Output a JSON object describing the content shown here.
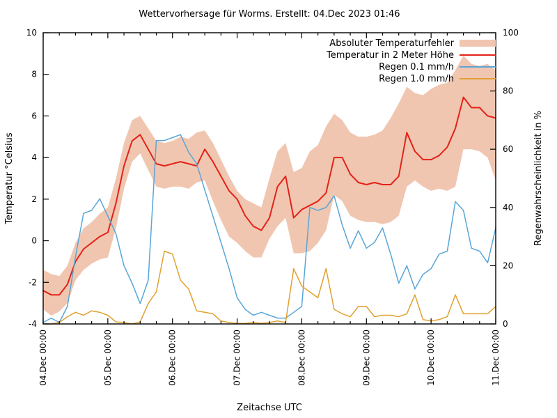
{
  "title": "Wettervorhersage für Worms. Erstellt: 04.Dec 2023 01:46",
  "chart_data": {
    "type": "line",
    "title": "Wettervorhersage für Worms. Erstellt: 04.Dec 2023 01:46",
    "xlabel": "Zeitachse UTC",
    "ylabel_left": "Temperatur °Celsius",
    "ylabel_right": "Regenwahrscheinlichkeit in %",
    "grid": false,
    "legend_position": "top-right-inside",
    "axes": {
      "x": {
        "min": 4,
        "max": 11,
        "unit": "day of December 2023, UTC",
        "minor_tick_hours": 6
      },
      "left": {
        "min": -4,
        "max": 10,
        "ticks": [
          -4,
          -2,
          0,
          2,
          4,
          6,
          8,
          10
        ]
      },
      "right": {
        "min": 0,
        "max": 100,
        "ticks": [
          0,
          20,
          40,
          60,
          80,
          100
        ]
      }
    },
    "x_tick_labels": [
      "04.Dec 00:00",
      "05.Dec 00:00",
      "06.Dec 00:00",
      "07.Dec 00:00",
      "08.Dec 00:00",
      "09.Dec 00:00",
      "10.Dec 00:00",
      "11.Dec 00:00"
    ],
    "x_day": [
      4,
      4.125,
      4.25,
      4.375,
      4.5,
      4.625,
      4.75,
      4.875,
      5,
      5.125,
      5.25,
      5.375,
      5.5,
      5.625,
      5.75,
      5.875,
      6,
      6.125,
      6.25,
      6.375,
      6.5,
      6.625,
      6.75,
      6.875,
      7,
      7.125,
      7.25,
      7.375,
      7.5,
      7.625,
      7.75,
      7.875,
      8,
      8.125,
      8.25,
      8.375,
      8.5,
      8.625,
      8.75,
      8.875,
      9,
      9.125,
      9.25,
      9.375,
      9.5,
      9.625,
      9.75,
      9.875,
      10,
      10.125,
      10.25,
      10.375,
      10.5,
      10.625,
      10.75,
      10.875,
      11
    ],
    "series": [
      {
        "id": "temp_error_band",
        "name": "Absoluter Temperaturfehler",
        "type": "band",
        "axis": "left",
        "color": "#f0c6b1",
        "upper": [
          -1.4,
          -1.6,
          -1.7,
          -1.2,
          -0.1,
          0.6,
          0.9,
          1.3,
          1.6,
          3.0,
          4.7,
          5.8,
          6.0,
          5.4,
          4.8,
          4.7,
          4.8,
          5.0,
          4.9,
          5.2,
          5.3,
          4.7,
          3.9,
          3.1,
          2.4,
          2.0,
          1.8,
          1.6,
          3.0,
          4.3,
          4.7,
          3.3,
          3.5,
          4.3,
          4.6,
          5.5,
          6.1,
          5.8,
          5.2,
          5.0,
          5.0,
          5.1,
          5.3,
          5.9,
          6.6,
          7.4,
          7.1,
          7.0,
          7.3,
          7.5,
          7.6,
          8.2,
          8.9,
          8.5,
          8.4,
          8.5,
          8.2
        ],
        "lower": [
          -3.3,
          -3.6,
          -3.4,
          -3.0,
          -1.9,
          -1.4,
          -1.1,
          -0.9,
          -0.8,
          0.6,
          2.5,
          3.8,
          4.2,
          3.4,
          2.6,
          2.5,
          2.6,
          2.6,
          2.5,
          2.8,
          2.9,
          1.9,
          1.0,
          0.2,
          -0.1,
          -0.5,
          -0.8,
          -0.8,
          0.1,
          0.7,
          1.1,
          -0.6,
          -0.6,
          -0.5,
          -0.1,
          0.5,
          2.2,
          1.9,
          1.2,
          1.0,
          0.9,
          0.9,
          0.8,
          0.9,
          1.2,
          2.6,
          2.9,
          2.6,
          2.4,
          2.5,
          2.4,
          2.6,
          4.4,
          4.4,
          4.3,
          4.0,
          2.9
        ]
      },
      {
        "id": "temperature",
        "name": "Temperatur in 2 Meter Höhe",
        "type": "line",
        "axis": "left",
        "color": "#e42217",
        "values": [
          -2.4,
          -2.6,
          -2.6,
          -2.1,
          -1.0,
          -0.4,
          -0.1,
          0.2,
          0.4,
          1.8,
          3.6,
          4.8,
          5.1,
          4.4,
          3.7,
          3.6,
          3.7,
          3.8,
          3.7,
          3.6,
          4.4,
          3.8,
          3.1,
          2.4,
          2.0,
          1.2,
          0.7,
          0.5,
          1.1,
          2.6,
          3.1,
          1.1,
          1.5,
          1.7,
          1.9,
          2.3,
          4.0,
          4.0,
          3.2,
          2.8,
          2.7,
          2.8,
          2.7,
          2.7,
          3.1,
          5.2,
          4.3,
          3.9,
          3.9,
          4.1,
          4.5,
          5.4,
          6.9,
          6.4,
          6.4,
          6.0,
          5.9
        ]
      },
      {
        "id": "rain_01",
        "name": "Regen 0.1 mm/h",
        "type": "line",
        "axis": "right",
        "color": "#58a6d8",
        "values": [
          0.5,
          2,
          0.5,
          6,
          23,
          38,
          39,
          43,
          37,
          31,
          20,
          14,
          7,
          15,
          63,
          63,
          64,
          65,
          59,
          55,
          46,
          37,
          28,
          19,
          9,
          5,
          3,
          4,
          3,
          2,
          2,
          4,
          6,
          40,
          39,
          40,
          44,
          34,
          26,
          32,
          26,
          28,
          33,
          24,
          14,
          20,
          12,
          17,
          19,
          24,
          25,
          42,
          39,
          26,
          25,
          21,
          33
        ]
      },
      {
        "id": "rain_10",
        "name": "Regen 1.0 mm/h",
        "type": "line",
        "axis": "right",
        "color": "#e0a030",
        "values": [
          0,
          0,
          0.5,
          2.5,
          4,
          3,
          4.5,
          4,
          3,
          0.7,
          0.5,
          0,
          0.7,
          7,
          11,
          25,
          24,
          15,
          12,
          4.5,
          4,
          3.5,
          1,
          0.5,
          0.2,
          0.2,
          0.5,
          0.2,
          0.5,
          1,
          0.5,
          19,
          13,
          11,
          9,
          19,
          5,
          3.5,
          2.5,
          6,
          6,
          2.5,
          3,
          3,
          2.5,
          3.5,
          10,
          1.5,
          1,
          1.5,
          2.5,
          10,
          3.5,
          3.5,
          3.5,
          3.5,
          6
        ]
      }
    ]
  }
}
